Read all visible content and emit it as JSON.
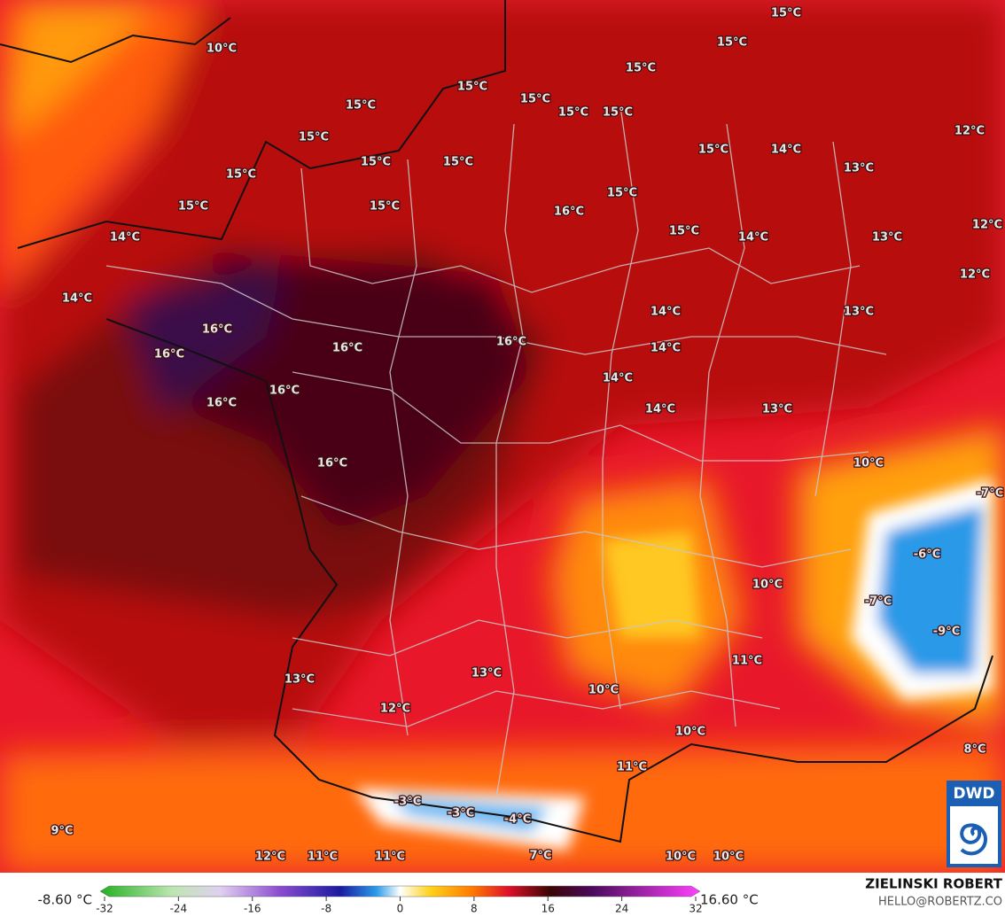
{
  "map": {
    "labels": [
      "10°C",
      "15°C",
      "15°C",
      "15°C",
      "15°C",
      "15°C",
      "15°C",
      "15°C",
      "15°C",
      "15°C",
      "15°C",
      "14°C",
      "12°C",
      "15°C",
      "15°C",
      "13°C",
      "15°C",
      "15°C",
      "15°C",
      "15°C",
      "16°C",
      "12°C",
      "14°C",
      "15°C",
      "14°C",
      "13°C",
      "12°C",
      "14°C",
      "14°C",
      "13°C",
      "16°C",
      "16°C",
      "16°C",
      "16°C",
      "14°C",
      "14°C",
      "16°C",
      "16°C",
      "14°C",
      "13°C",
      "16°C",
      "10°C",
      "-7°C",
      "-6°C",
      "10°C",
      "-7°C",
      "-9°C",
      "11°C",
      "13°C",
      "13°C",
      "10°C",
      "12°C",
      "10°C",
      "8°C",
      "11°C",
      "-3°C",
      "-3°C",
      "-4°C",
      "9°C",
      "7°C",
      "12°C",
      "11°C",
      "11°C",
      "10°C",
      "10°C"
    ],
    "colorbar": {
      "min_label": "-8.60 °C",
      "max_label": "16.60 °C",
      "range": [
        -32,
        32
      ],
      "ticks": [
        -32,
        -24,
        -16,
        -8,
        0,
        8,
        16,
        24,
        32
      ]
    },
    "author": "ZIELINSKI ROBERT",
    "email": "HELLO@ROBERTZ.CO",
    "logo": "DWD"
  }
}
